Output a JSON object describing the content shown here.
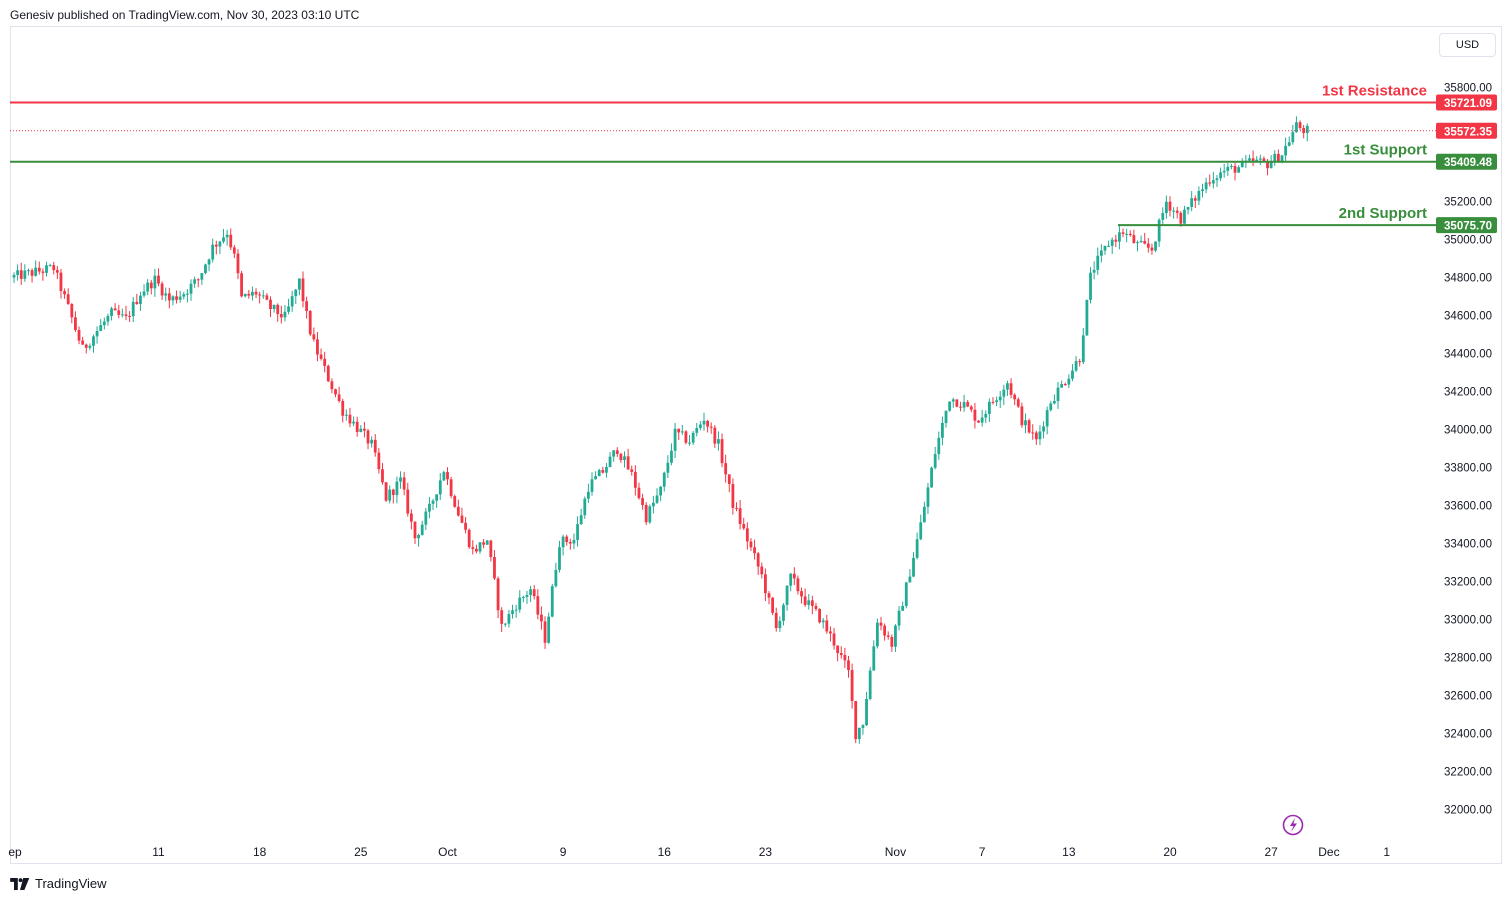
{
  "header": {
    "publisher_text": "Genesiv published on TradingView.com, Nov 30, 2023 03:10 UTC"
  },
  "currency_button": "USD",
  "footer": {
    "brand": "TradingView"
  },
  "colors": {
    "up": "#22ab94",
    "down": "#f23645",
    "resistance": "#f23645",
    "support": "#388e3c",
    "price_line": "#f23645",
    "text": "#131722",
    "axis_text": "#131722"
  },
  "chart_data": {
    "type": "candlestick",
    "title": "",
    "ylim": [
      31750,
      35980
    ],
    "y_ticks": [
      "35800.00",
      "35200.00",
      "35000.00",
      "34800.00",
      "34600.00",
      "34400.00",
      "34200.00",
      "34000.00",
      "33800.00",
      "33600.00",
      "33400.00",
      "33200.00",
      "33000.00",
      "32800.00",
      "32600.00",
      "32400.00",
      "32200.00",
      "32000.00"
    ],
    "x_ticks": [
      {
        "label": "ep",
        "day": 0
      },
      {
        "label": "11",
        "day": 10
      },
      {
        "label": "18",
        "day": 17
      },
      {
        "label": "25",
        "day": 24
      },
      {
        "label": "Oct",
        "day": 30
      },
      {
        "label": "9",
        "day": 38
      },
      {
        "label": "16",
        "day": 45
      },
      {
        "label": "23",
        "day": 52
      },
      {
        "label": "Nov",
        "day": 61
      },
      {
        "label": "7",
        "day": 67
      },
      {
        "label": "13",
        "day": 73
      },
      {
        "label": "20",
        "day": 80
      },
      {
        "label": "27",
        "day": 87
      },
      {
        "label": "Dec",
        "day": 91
      },
      {
        "label": "1",
        "day": 95
      }
    ],
    "levels": [
      {
        "name": "1st Resistance",
        "value": 35721.09,
        "label": "35721.09",
        "kind": "resistance",
        "start_day": 0
      },
      {
        "name": "1st Support",
        "value": 35409.48,
        "label": "35409.48",
        "kind": "support",
        "start_day": 0
      },
      {
        "name": "2nd Support",
        "value": 35075.7,
        "label": "35075.70",
        "kind": "support",
        "start_day": 76.4
      }
    ],
    "last_price": {
      "value": 35572.35,
      "label": "35572.35"
    },
    "path": [
      [
        0,
        34800
      ],
      [
        3,
        34850
      ],
      [
        4,
        34640
      ],
      [
        5,
        34420
      ],
      [
        6,
        34520
      ],
      [
        7,
        34610
      ],
      [
        8,
        34580
      ],
      [
        9,
        34720
      ],
      [
        10,
        34790
      ],
      [
        11,
        34680
      ],
      [
        12,
        34720
      ],
      [
        13,
        34790
      ],
      [
        14,
        34960
      ],
      [
        15,
        35040
      ],
      [
        15.6,
        34880
      ],
      [
        16,
        34690
      ],
      [
        17,
        34720
      ],
      [
        18,
        34640
      ],
      [
        19,
        34590
      ],
      [
        20,
        34780
      ],
      [
        20.6,
        34560
      ],
      [
        21,
        34450
      ],
      [
        22,
        34270
      ],
      [
        23,
        34100
      ],
      [
        24,
        34010
      ],
      [
        25,
        33920
      ],
      [
        26,
        33640
      ],
      [
        27,
        33730
      ],
      [
        28,
        33430
      ],
      [
        29,
        33580
      ],
      [
        30,
        33790
      ],
      [
        31,
        33560
      ],
      [
        32,
        33360
      ],
      [
        33,
        33420
      ],
      [
        34,
        32960
      ],
      [
        35,
        33080
      ],
      [
        36,
        33160
      ],
      [
        37,
        32900
      ],
      [
        38,
        33410
      ],
      [
        39,
        33420
      ],
      [
        40,
        33700
      ],
      [
        41,
        33780
      ],
      [
        42,
        33900
      ],
      [
        43,
        33760
      ],
      [
        44,
        33540
      ],
      [
        45,
        33680
      ],
      [
        46,
        33980
      ],
      [
        47,
        33940
      ],
      [
        48,
        34060
      ],
      [
        49,
        33920
      ],
      [
        50,
        33610
      ],
      [
        51,
        33420
      ],
      [
        52,
        33230
      ],
      [
        53,
        32950
      ],
      [
        54,
        33220
      ],
      [
        55,
        33100
      ],
      [
        56,
        33010
      ],
      [
        57,
        32880
      ],
      [
        58,
        32720
      ],
      [
        58.5,
        32400
      ],
      [
        59,
        32460
      ],
      [
        60,
        33000
      ],
      [
        61,
        32870
      ],
      [
        62,
        33170
      ],
      [
        63,
        33500
      ],
      [
        64,
        33880
      ],
      [
        65,
        34170
      ],
      [
        66,
        34130
      ],
      [
        67,
        34050
      ],
      [
        68,
        34150
      ],
      [
        69,
        34250
      ],
      [
        70,
        34050
      ],
      [
        71,
        33940
      ],
      [
        72,
        34150
      ],
      [
        73,
        34260
      ],
      [
        74,
        34380
      ],
      [
        74.8,
        34830
      ],
      [
        76,
        34980
      ],
      [
        77,
        35040
      ],
      [
        78,
        34970
      ],
      [
        79,
        34950
      ],
      [
        80,
        35200
      ],
      [
        81,
        35110
      ],
      [
        82,
        35220
      ],
      [
        83,
        35320
      ],
      [
        84,
        35360
      ],
      [
        85,
        35380
      ],
      [
        86,
        35410
      ],
      [
        87,
        35400
      ],
      [
        88,
        35450
      ],
      [
        89,
        35600
      ],
      [
        89.6,
        35572
      ]
    ]
  },
  "watermark_icon": "lightning-icon"
}
